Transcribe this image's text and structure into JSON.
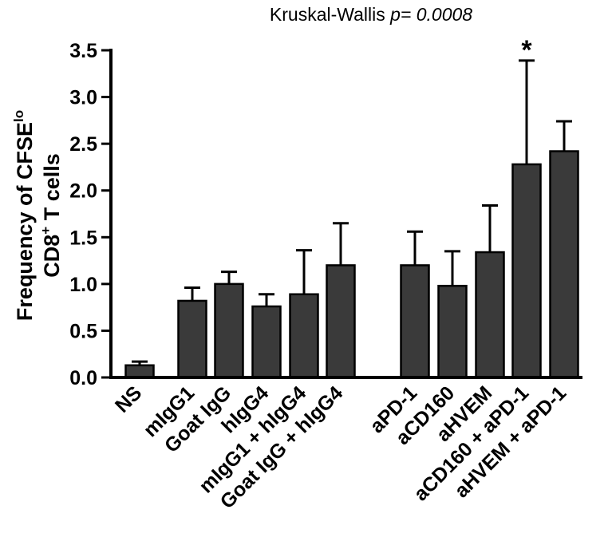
{
  "chart_data": {
    "type": "bar",
    "title": "Kruskal-Wallis",
    "title_p_label": "p= 0.0008",
    "ylabel_line1": "Frequency of CFSE",
    "ylabel_line1_superscript": "lo",
    "ylabel_line2_pre": "CD8",
    "ylabel_line2_superscript": "+",
    "ylabel_line2_post": " T cells",
    "ylim": [
      0,
      3.5
    ],
    "yticks": [
      "0.0",
      "0.5",
      "1.0",
      "1.5",
      "2.0",
      "2.5",
      "3.0",
      "3.5"
    ],
    "grid": false,
    "bar_color": "#3a3a3a",
    "categories": [
      "NS",
      "mIgG1",
      "Goat IgG",
      "hIgG4",
      "mIgG1 + hIgG4",
      "Goat IgG + hIgG4",
      "aPD-1",
      "aCD160",
      "aHVEM",
      "aCD160 + aPD-1",
      "aHVEM + aPD-1"
    ],
    "values": [
      0.13,
      0.82,
      1.0,
      0.76,
      0.89,
      1.2,
      1.2,
      0.98,
      1.34,
      2.28,
      2.42
    ],
    "error_upper": [
      0.17,
      0.96,
      1.13,
      0.89,
      1.36,
      1.65,
      1.56,
      1.35,
      1.84,
      3.39,
      2.74
    ],
    "groups": [
      [
        0
      ],
      [
        1,
        2,
        3,
        4,
        5
      ],
      [
        6,
        7,
        8,
        9,
        10
      ]
    ],
    "annotations": [
      {
        "category": "aCD160 + aPD-1",
        "text": "*"
      }
    ]
  }
}
